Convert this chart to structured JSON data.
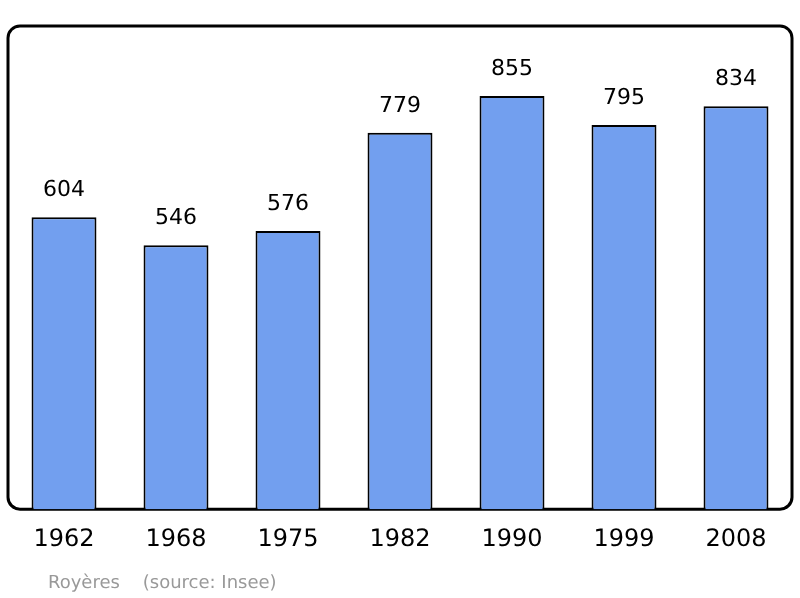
{
  "chart_data": {
    "type": "bar",
    "categories": [
      "1962",
      "1968",
      "1975",
      "1982",
      "1990",
      "1999",
      "2008"
    ],
    "values": [
      604,
      546,
      576,
      779,
      855,
      795,
      834
    ],
    "color": "#729fef",
    "data_labels": true,
    "grid": false,
    "legend": false,
    "annotations": [
      "Royères    (source: Insee)"
    ]
  }
}
